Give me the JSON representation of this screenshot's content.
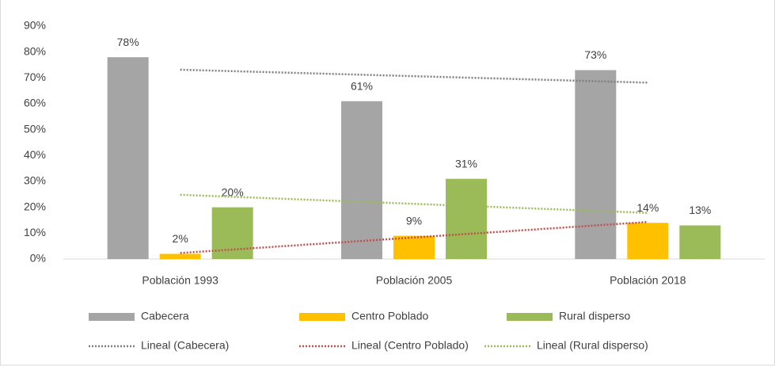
{
  "chart_data": {
    "type": "bar",
    "categories": [
      "Población 1993",
      "Población 2005",
      "Población 2018"
    ],
    "series": [
      {
        "name": "Cabecera",
        "color": "#a5a5a5",
        "values": [
          78,
          61,
          73
        ],
        "value_labels": [
          "78%",
          "61%",
          "73%"
        ],
        "trendline_name": "Lineal (Cabecera)",
        "trendline_color": "#7f7f7f"
      },
      {
        "name": "Centro Poblado",
        "color": "#ffc000",
        "values": [
          2,
          9,
          14
        ],
        "value_labels": [
          "2%",
          "9%",
          "14%"
        ],
        "trendline_name": "Lineal (Centro Poblado)",
        "trendline_color": "#c0504d"
      },
      {
        "name": "Rural disperso",
        "color": "#9bbb59",
        "values": [
          20,
          31,
          13
        ],
        "value_labels": [
          "20%",
          "31%",
          "13%"
        ],
        "trendline_name": "Lineal (Rural disperso)",
        "trendline_color": "#9bbb59"
      }
    ],
    "ylim": [
      0,
      90
    ],
    "yticks": [
      {
        "value": 0,
        "label": "0%"
      },
      {
        "value": 10,
        "label": "10%"
      },
      {
        "value": 20,
        "label": "20%"
      },
      {
        "value": 30,
        "label": "30%"
      },
      {
        "value": 40,
        "label": "40%"
      },
      {
        "value": 50,
        "label": "50%"
      },
      {
        "value": 60,
        "label": "60%"
      },
      {
        "value": 70,
        "label": "70%"
      },
      {
        "value": 80,
        "label": "80%"
      },
      {
        "value": 90,
        "label": "90%"
      }
    ],
    "grid": false,
    "legend": "bottom"
  }
}
